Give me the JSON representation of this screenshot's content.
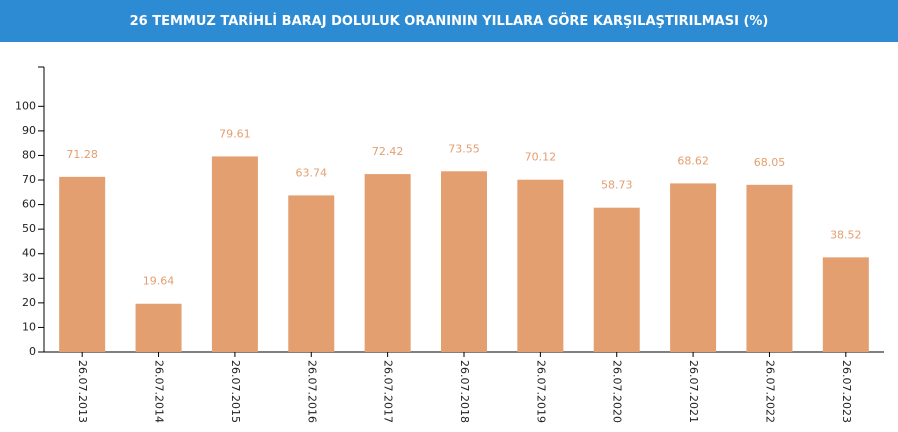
{
  "chart_data": {
    "type": "bar",
    "title": "26 TEMMUZ TARİHLİ BARAJ DOLULUK ORANININ YILLARA GÖRE KARŞILAŞTIRILMASI (%)",
    "categories": [
      "26.07.2013",
      "26.07.2014",
      "26.07.2015",
      "26.07.2016",
      "26.07.2017",
      "26.07.2018",
      "26.07.2019",
      "26.07.2020",
      "26.07.2021",
      "26.07.2022",
      "26.07.2023"
    ],
    "values": [
      71.28,
      19.64,
      79.61,
      63.74,
      72.42,
      73.55,
      70.12,
      58.73,
      68.62,
      68.05,
      38.52
    ],
    "color": "#e39f70",
    "ylim": [
      0,
      116
    ],
    "yticks": [
      0,
      10,
      20,
      30,
      40,
      50,
      60,
      70,
      80,
      90,
      100
    ]
  }
}
